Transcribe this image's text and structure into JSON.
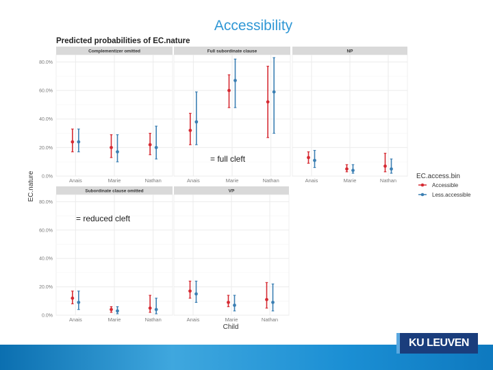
{
  "slide": {
    "title": "Accessibility",
    "annotation_full_cleft": "= full cleft",
    "annotation_reduced_cleft": "= reduced cleft",
    "logo_text": "KU LEUVEN"
  },
  "colors": {
    "title": "#2f97d5",
    "accessible": "#d62a32",
    "less_accessible": "#3b7fb3",
    "strip": "#d9d9d9",
    "panel_bg": "#ffffff",
    "grid": "#ebebeb"
  },
  "chart_data": {
    "type": "scatter",
    "title": "Predicted probabilities of EC.nature",
    "xlabel": "Child",
    "ylabel": "EC.nature",
    "ylim": [
      0,
      0.85
    ],
    "y_ticks": [
      0,
      0.2,
      0.4,
      0.6,
      0.8
    ],
    "y_tick_labels": [
      "0.0%",
      "20.0%",
      "40.0%",
      "60.0%",
      "80.0%"
    ],
    "categories": [
      "Anais",
      "Marie",
      "Nathan"
    ],
    "legend": {
      "title": "EC.access.bin",
      "entries": [
        "Accessible",
        "Less.accessible"
      ],
      "position": "right"
    },
    "panels": [
      {
        "name": "Complementizer omitted",
        "series": [
          {
            "name": "Accessible",
            "values": [
              0.24,
              0.2,
              0.22
            ],
            "lower": [
              0.17,
              0.13,
              0.15
            ],
            "upper": [
              0.33,
              0.29,
              0.3
            ]
          },
          {
            "name": "Less.accessible",
            "values": [
              0.24,
              0.17,
              0.2
            ],
            "lower": [
              0.17,
              0.1,
              0.12
            ],
            "upper": [
              0.33,
              0.29,
              0.35
            ]
          }
        ]
      },
      {
        "name": "Full subordinate clause",
        "series": [
          {
            "name": "Accessible",
            "values": [
              0.32,
              0.6,
              0.52
            ],
            "lower": [
              0.22,
              0.48,
              0.27
            ],
            "upper": [
              0.44,
              0.71,
              0.77
            ]
          },
          {
            "name": "Less.accessible",
            "values": [
              0.38,
              0.67,
              0.59
            ],
            "lower": [
              0.22,
              0.48,
              0.3
            ],
            "upper": [
              0.59,
              0.82,
              0.83
            ]
          }
        ]
      },
      {
        "name": "NP",
        "series": [
          {
            "name": "Accessible",
            "values": [
              0.13,
              0.05,
              0.07
            ],
            "lower": [
              0.09,
              0.03,
              0.03
            ],
            "upper": [
              0.17,
              0.08,
              0.16
            ]
          },
          {
            "name": "Less.accessible",
            "values": [
              0.11,
              0.04,
              0.05
            ],
            "lower": [
              0.06,
              0.02,
              0.02
            ],
            "upper": [
              0.18,
              0.08,
              0.12
            ]
          }
        ]
      },
      {
        "name": "Subordinate clause omitted",
        "series": [
          {
            "name": "Accessible",
            "values": [
              0.12,
              0.04,
              0.05
            ],
            "lower": [
              0.08,
              0.02,
              0.02
            ],
            "upper": [
              0.17,
              0.06,
              0.14
            ]
          },
          {
            "name": "Less.accessible",
            "values": [
              0.09,
              0.03,
              0.04
            ],
            "lower": [
              0.04,
              0.01,
              0.01
            ],
            "upper": [
              0.17,
              0.06,
              0.12
            ]
          }
        ]
      },
      {
        "name": "VP",
        "series": [
          {
            "name": "Accessible",
            "values": [
              0.17,
              0.09,
              0.11
            ],
            "lower": [
              0.12,
              0.06,
              0.05
            ],
            "upper": [
              0.24,
              0.14,
              0.23
            ]
          },
          {
            "name": "Less.accessible",
            "values": [
              0.15,
              0.07,
              0.09
            ],
            "lower": [
              0.09,
              0.03,
              0.03
            ],
            "upper": [
              0.24,
              0.14,
              0.22
            ]
          }
        ]
      }
    ]
  }
}
